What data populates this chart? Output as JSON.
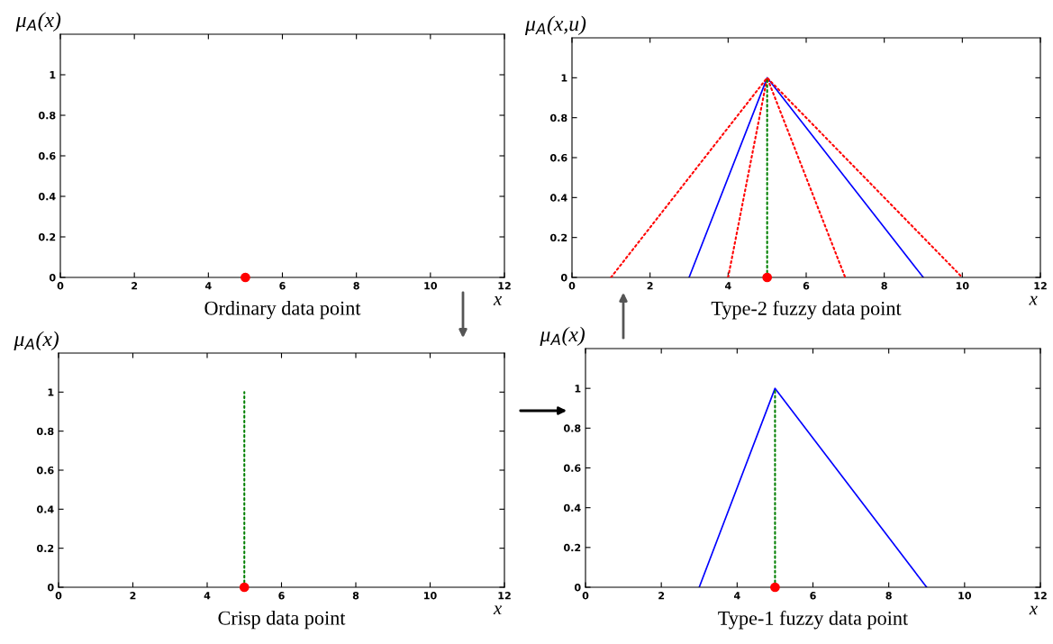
{
  "chart_data": [
    {
      "type": "line",
      "title": "Ordinary data point",
      "xlabel": "x",
      "ylabel": "μ$_{A}$(x)",
      "xlim": [
        0,
        12
      ],
      "ylim": [
        0,
        1.2
      ],
      "xticks": [
        0,
        2,
        4,
        6,
        8,
        10,
        12
      ],
      "yticks": [
        0,
        0.2,
        0.4,
        0.6,
        0.8,
        1
      ],
      "grid": false,
      "legend": false,
      "series": [
        {
          "type": "scatter",
          "color": "#ff0000",
          "marker": "circle",
          "x": [
            5
          ],
          "values": [
            0
          ]
        }
      ]
    },
    {
      "type": "line",
      "title": "Type-2 fuzzy data point",
      "xlabel": "x",
      "ylabel": "μ$_{A}$(x,u)",
      "xlim": [
        0,
        12
      ],
      "ylim": [
        0,
        1.2
      ],
      "xticks": [
        0,
        2,
        4,
        6,
        8,
        10,
        12
      ],
      "yticks": [
        0,
        0.2,
        0.4,
        0.6,
        0.8,
        1
      ],
      "grid": false,
      "legend": false,
      "series": [
        {
          "color": "#ff0000",
          "line_style": "dotted",
          "marker": "none",
          "x": [
            1,
            5,
            10
          ],
          "values": [
            0,
            1,
            0
          ]
        },
        {
          "color": "#0000ff",
          "line_style": "solid",
          "marker": "none",
          "x": [
            3,
            5,
            9
          ],
          "values": [
            0,
            1,
            0
          ]
        },
        {
          "color": "#ff0000",
          "line_style": "dotted",
          "marker": "none",
          "x": [
            4,
            5,
            7
          ],
          "values": [
            0,
            1,
            0
          ]
        },
        {
          "color": "#008000",
          "line_style": "dotted",
          "marker": "none",
          "x": [
            5,
            5
          ],
          "values": [
            0,
            1
          ]
        },
        {
          "type": "scatter",
          "color": "#ff0000",
          "marker": "circle",
          "x": [
            5
          ],
          "values": [
            0
          ]
        }
      ]
    },
    {
      "type": "line",
      "title": "Crisp data point",
      "xlabel": "x",
      "ylabel": "μ$_{A}$(x)",
      "xlim": [
        0,
        12
      ],
      "ylim": [
        0,
        1.2
      ],
      "xticks": [
        0,
        2,
        4,
        6,
        8,
        10,
        12
      ],
      "yticks": [
        0,
        0.2,
        0.4,
        0.6,
        0.8,
        1
      ],
      "grid": false,
      "legend": false,
      "series": [
        {
          "color": "#008000",
          "line_style": "dotted",
          "marker": "none",
          "x": [
            5,
            5
          ],
          "values": [
            0,
            1
          ]
        },
        {
          "type": "scatter",
          "color": "#ff0000",
          "marker": "circle",
          "x": [
            5
          ],
          "values": [
            0
          ]
        }
      ]
    },
    {
      "type": "line",
      "title": "Type-1 fuzzy data point",
      "xlabel": "x",
      "ylabel": "μ$_{A}$(x)",
      "xlim": [
        0,
        12
      ],
      "ylim": [
        0,
        1.2
      ],
      "xticks": [
        0,
        2,
        4,
        6,
        8,
        10,
        12
      ],
      "yticks": [
        0,
        0.2,
        0.4,
        0.6,
        0.8,
        1
      ],
      "grid": false,
      "legend": false,
      "series": [
        {
          "color": "#0000ff",
          "line_style": "solid",
          "marker": "none",
          "x": [
            3,
            5,
            9
          ],
          "values": [
            0,
            1,
            0
          ]
        },
        {
          "color": "#008000",
          "line_style": "dotted",
          "marker": "none",
          "x": [
            5,
            5
          ],
          "values": [
            0,
            1
          ]
        },
        {
          "type": "scatter",
          "color": "#ff0000",
          "marker": "circle",
          "x": [
            5
          ],
          "values": [
            0
          ]
        }
      ]
    }
  ]
}
